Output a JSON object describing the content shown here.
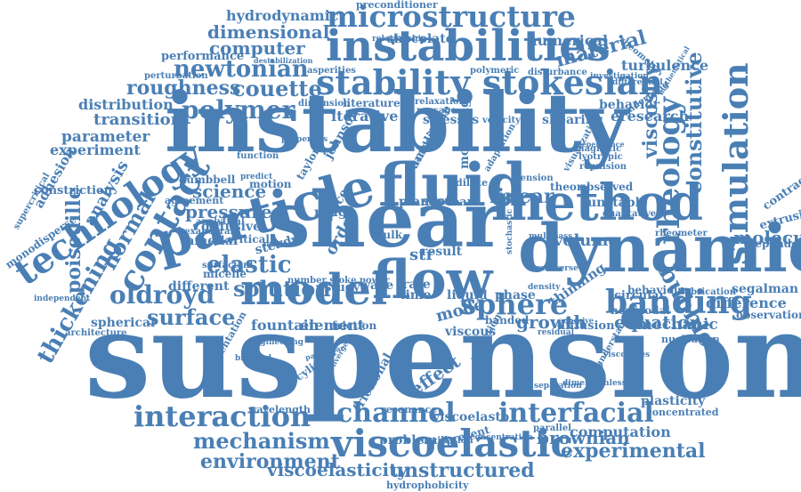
{
  "colors": {
    "word": "#4a7fb5",
    "background": "#ffffff"
  },
  "words": {
    "suspension": "suspension",
    "instability": "instability",
    "shear": "shear",
    "dynamic": "dynamic",
    "fluid": "fluid",
    "particle": "particle",
    "model": "model",
    "flow": "flow",
    "method": "method",
    "instabilities": "instabilities",
    "microstructure": "microstructure",
    "stability": "stability",
    "stokesian": "stokesian",
    "technology": "technology",
    "contact": "contact",
    "thickening": "thickening",
    "normal": "normal",
    "rheology": "rheology",
    "simulation": "simulation",
    "constitutive": "constitutive",
    "bubble": "bubble",
    "viscoelastic": "viscoelastic",
    "interaction": "interaction",
    "channel": "channel",
    "interfacial": "interfacial",
    "mechanism": "mechanism",
    "environment": "environment",
    "viscoelasticity": "viscoelasticity",
    "unstructured": "unstructured",
    "hydrophobicity": "hydrophobicity",
    "experimental": "experimental",
    "computation": "computation",
    "brownian": "brownian",
    "banding": "banding",
    "sphere": "sphere",
    "oldroyd": "oldroyd",
    "elastic": "elastic",
    "surface": "surface",
    "solution": "solution",
    "newtonian": "newtonian",
    "roughness": "roughness",
    "couette": "couette",
    "polymer": "polymer",
    "computer": "computer",
    "dimensional": "dimensional",
    "hydrodynamic": "hydrodynamic",
    "preconditioner": "preconditioner",
    "chocolate": "chocolate",
    "numerical": "numerical",
    "material": "material",
    "turbulence": "turbulence",
    "performance": "performance",
    "distribution": "distribution",
    "transition": "transition",
    "parameter": "parameter",
    "experiment": "experiment",
    "science": "science",
    "pressure": "pressure",
    "linear": "linear",
    "volume": "volume",
    "equation": "equation",
    "growth": "growth",
    "mechanic": "mechanic",
    "difference": "difference",
    "segalman": "segalman",
    "molecular": "molecular",
    "dependent": "dependent",
    "extrusion": "extrusion",
    "contraction": "contraction",
    "viscosity": "viscosity",
    "eresearch": "eresearch",
    "behavior": "behavior",
    "shearing": "shearing",
    "stresses": "stresses",
    "iterative": "iterative",
    "literature": "literature",
    "modelling": "modelling",
    "effect": "effect",
    "viscous": "viscous",
    "element": "element",
    "fountain": "fountain",
    "different": "different",
    "poiseuille": "poiseuille",
    "analysis": "analysis",
    "adhesion": "adhesion",
    "constriction": "constriction",
    "monodisperse": "monodisperse",
    "spherical": "spherical",
    "architecture": "architecture",
    "independent": "independent",
    "diffusive": "diffusive",
    "lamellar": "lamellar",
    "micelle": "micelle",
    "dumbbell": "dumbbell",
    "motion": "motion",
    "planar": "planar",
    "rough": "rough",
    "theory": "theory",
    "unstable": "unstable",
    "observed": "observed",
    "foam": "foam",
    "phase": "phase",
    "liquid": "liquid",
    "rate": "rate",
    "time": "time",
    "wave": "wave",
    "study": "study",
    "friction": "friction",
    "mode": "mode",
    "frictional": "frictional",
    "viscoelasto": "viscoelasto",
    "resonance": "resonance",
    "problem": "problem",
    "oscillation": "oscillation",
    "plasticity": "plasticity",
    "concentrated": "concentrated",
    "diffusion": "diffusion",
    "nonmodal": "nonmodal",
    "behaviour": "behaviour",
    "lubrication": "lubrication",
    "observation": "observation",
    "nucleation": "nucleation",
    "circular": "circular",
    "thinning": "thinning",
    "banded": "banded",
    "rheometer": "rheometer",
    "cylinder": "cylinder",
    "sedimentation": "sedimentation",
    "wavelength": "wavelength",
    "johnson": "johnson",
    "taylor": "taylor",
    "force": "force",
    "order": "order",
    "steady": "steady",
    "critical": "critical",
    "agreement": "agreement",
    "analytical": "analytical",
    "hexahedral": "hexahedral",
    "surfactant": "surfactant",
    "supercritical": "supercritical",
    "perturbation": "perturbation",
    "asperities": "asperities",
    "polymeric": "polymeric",
    "disturbance": "disturbance",
    "relationship": "relationship",
    "rheometry": "rheometry",
    "investigation": "investigation",
    "differential": "differential",
    "mathematical": "mathematical",
    "underlying": "underlying",
    "velocity": "velocity",
    "relaxation": "relaxation",
    "passage": "passage",
    "dimension": "dimension",
    "adaptation": "adaptation",
    "visualization": "visualization",
    "lyotropic": "lyotropic",
    "repulsion": "repulsion",
    "magnetic": "magnetic",
    "qualitative": "qualitative",
    "dependence": "dependence",
    "entangled": "entangled",
    "amplitude": "amplitude",
    "short": "short",
    "dilute": "dilute",
    "tension": "tension",
    "multipass": "multipass",
    "bulk": "bulk",
    "result": "result",
    "str": "str",
    "present": "present",
    "predict": "predict",
    "function": "function",
    "properties": "properties",
    "nuclear": "nuclear",
    "stochastic": "stochastic",
    "density": "density",
    "reflection": "reflection",
    "understanding": "understanding",
    "viscosities": "viscosities",
    "separation": "separation",
    "competition": "competition",
    "adhesive": "adhesive",
    "residual": "residual",
    "concentration": "concentration",
    "parallel": "parallel",
    "dimensionless": "dimensionless",
    "particular": "particular",
    "convergent": "convergent",
    "brushed": "brushed",
    "engineering": "engineering",
    "number stoke power": "number stoke power",
    "transverse": "transverse",
    "destabilization": "destabilization"
  }
}
